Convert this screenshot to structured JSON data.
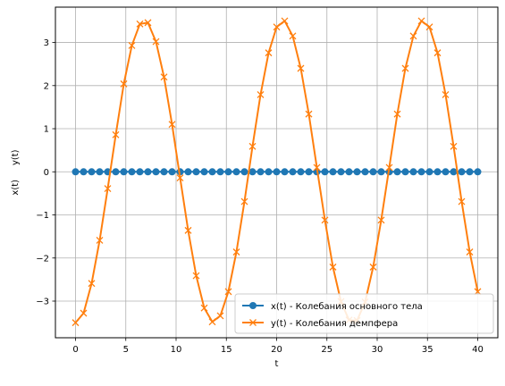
{
  "chart_data": {
    "type": "line",
    "title": "",
    "xlabel": "t",
    "ylabel": "x(t)     y(t)",
    "xlim": [
      -2.0,
      42.0
    ],
    "ylim": [
      -3.85,
      3.82
    ],
    "xticks": [
      0,
      5,
      10,
      15,
      20,
      25,
      30,
      35,
      40
    ],
    "xtick_labels": [
      "0",
      "5",
      "10",
      "15",
      "20",
      "25",
      "30",
      "35",
      "40"
    ],
    "yticks": [
      -3,
      -2,
      -1,
      0,
      1,
      2,
      3
    ],
    "ytick_labels": [
      "−3",
      "−2",
      "−1",
      "0",
      "1",
      "2",
      "3"
    ],
    "grid": true,
    "legend_position": "lower-right",
    "series": [
      {
        "name": "x(t) - Колебания основного тела",
        "color": "#1f77b4",
        "marker": "circle",
        "x": [
          0,
          0.8,
          1.6,
          2.4,
          3.2,
          4.0,
          4.8,
          5.6,
          6.4,
          7.2,
          8.0,
          8.8,
          9.6,
          10.4,
          11.2,
          12.0,
          12.8,
          13.6,
          14.4,
          15.2,
          16.0,
          16.8,
          17.6,
          18.4,
          19.2,
          20.0,
          20.8,
          21.6,
          22.4,
          23.2,
          24.0,
          24.8,
          25.6,
          26.4,
          27.2,
          28.0,
          28.8,
          29.6,
          30.4,
          31.2,
          32.0,
          32.8,
          33.6,
          34.4,
          35.2,
          36.0,
          36.8,
          37.6,
          38.4,
          39.2,
          40.0
        ],
        "y": [
          0,
          0,
          0,
          0,
          0,
          0,
          0,
          0,
          0,
          0,
          0,
          0,
          0,
          0,
          0,
          0,
          0,
          0,
          0,
          0,
          0,
          0,
          0,
          0,
          0,
          0,
          0,
          0,
          0,
          0,
          0,
          0,
          0,
          0,
          0,
          0,
          0,
          0,
          0,
          0,
          0,
          0,
          0,
          0,
          0,
          0,
          0,
          0,
          0,
          0,
          0
        ]
      },
      {
        "name": "y(t) - Колебания демпфера",
        "color": "#ff7f0e",
        "marker": "x",
        "x": [
          0,
          0.8,
          1.6,
          2.4,
          3.2,
          4.0,
          4.8,
          5.6,
          6.4,
          7.2,
          8.0,
          8.8,
          9.6,
          10.4,
          11.2,
          12.0,
          12.8,
          13.6,
          14.4,
          15.2,
          16.0,
          16.8,
          17.6,
          18.4,
          19.2,
          20.0,
          20.8,
          21.6,
          22.4,
          23.2,
          24.0,
          24.8,
          25.6,
          26.4,
          27.2,
          28.0,
          28.8,
          29.6,
          30.4,
          31.2,
          32.0,
          32.8,
          33.6,
          34.4,
          35.2,
          36.0,
          36.8,
          37.6,
          38.4,
          39.2,
          40.0
        ],
        "y": [
          -3.5,
          -3.28,
          -2.59,
          -1.59,
          -0.39,
          0.86,
          2.04,
          2.93,
          3.43,
          3.46,
          3.02,
          2.2,
          1.1,
          -0.14,
          -1.36,
          -2.41,
          -3.16,
          -3.48,
          -3.34,
          -2.78,
          -1.86,
          -0.69,
          0.59,
          1.79,
          2.76,
          3.36,
          3.5,
          3.15,
          2.4,
          1.34,
          0.1,
          -1.12,
          -2.21,
          -3.01,
          -3.44,
          -3.45,
          -3.02,
          -2.21,
          -1.12,
          0.1,
          1.34,
          2.4,
          3.15,
          3.5,
          3.36,
          2.76,
          1.79,
          0.59,
          -0.69,
          -1.86,
          -2.78
        ]
      }
    ]
  }
}
